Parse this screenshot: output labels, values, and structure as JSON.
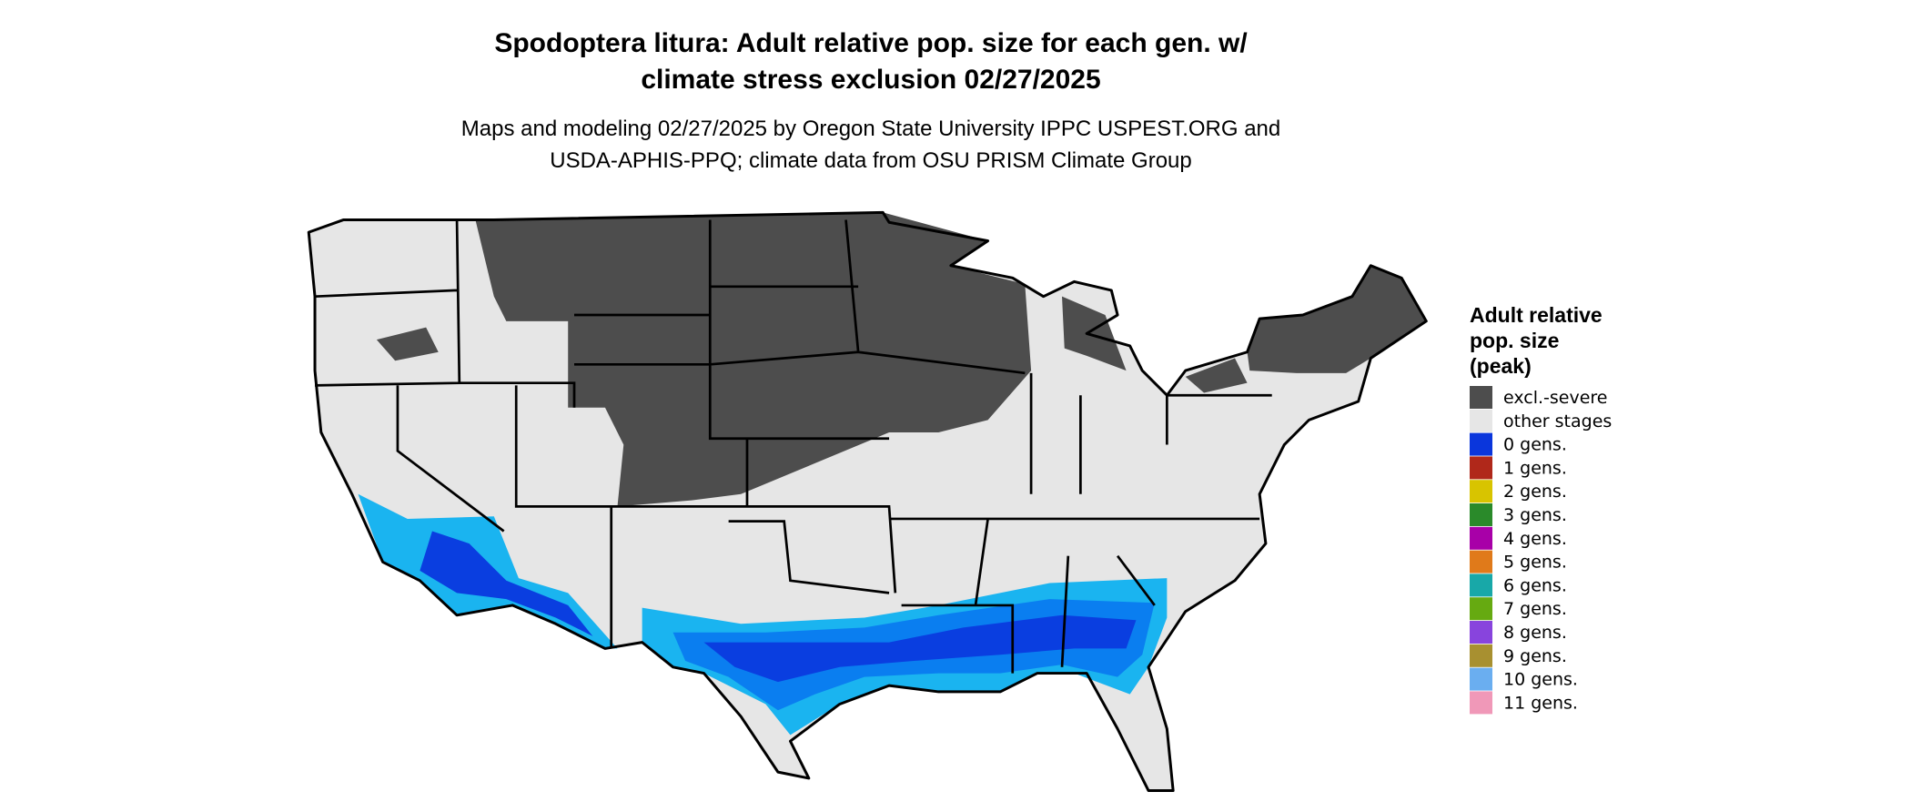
{
  "map": {
    "title_lines": [
      "Spodoptera litura: Adult relative pop. size for each gen. w/",
      "climate stress exclusion 02/27/2025"
    ],
    "subtitle_lines": [
      "Maps and modeling 02/27/2025 by Oregon State University IPPC USPEST.ORG and",
      "USDA-APHIS-PPQ; climate data from OSU PRISM Climate Group"
    ],
    "legend": {
      "title_lines": [
        "Adult relative",
        "pop. size",
        "(peak)"
      ],
      "items": [
        {
          "label": "excl.-severe",
          "color": "#4d4d4d"
        },
        {
          "label": "other stages",
          "color": "#e6e6e6"
        },
        {
          "label": "0 gens.",
          "color": "#0a36dc"
        },
        {
          "label": "1 gens.",
          "color": "#b0281a"
        },
        {
          "label": "2 gens.",
          "color": "#d8c400"
        },
        {
          "label": "3 gens.",
          "color": "#2a8a2a"
        },
        {
          "label": "4 gens.",
          "color": "#a800a8"
        },
        {
          "label": "5 gens.",
          "color": "#e07a1a"
        },
        {
          "label": "6 gens.",
          "color": "#18a8a8"
        },
        {
          "label": "7 gens.",
          "color": "#66aa11"
        },
        {
          "label": "8 gens.",
          "color": "#8844dd"
        },
        {
          "label": "9 gens.",
          "color": "#a89030"
        },
        {
          "label": "10 gens.",
          "color": "#6aaef0"
        },
        {
          "label": "11 gens.",
          "color": "#f098b8"
        }
      ]
    }
  }
}
